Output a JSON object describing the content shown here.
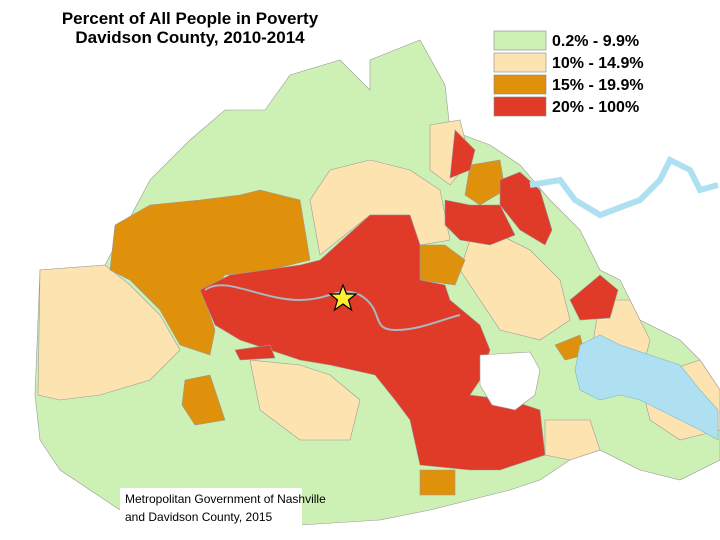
{
  "header": {
    "title_lines": [
      "Percent of All People in Poverty",
      "Davidson County, 2010-2014"
    ]
  },
  "legend": {
    "items": [
      {
        "label": "0.2% - 9.9%",
        "color": "#cdf0b4"
      },
      {
        "label": "10% - 14.9%",
        "color": "#fde3b0"
      },
      {
        "label": "15% - 19.9%",
        "color": "#df910c"
      },
      {
        "label": "20% - 100%",
        "color": "#e03a28"
      }
    ]
  },
  "credit": {
    "lines": [
      "Metropolitan Government of Nashville",
      "and Davidson County, 2015"
    ]
  }
}
